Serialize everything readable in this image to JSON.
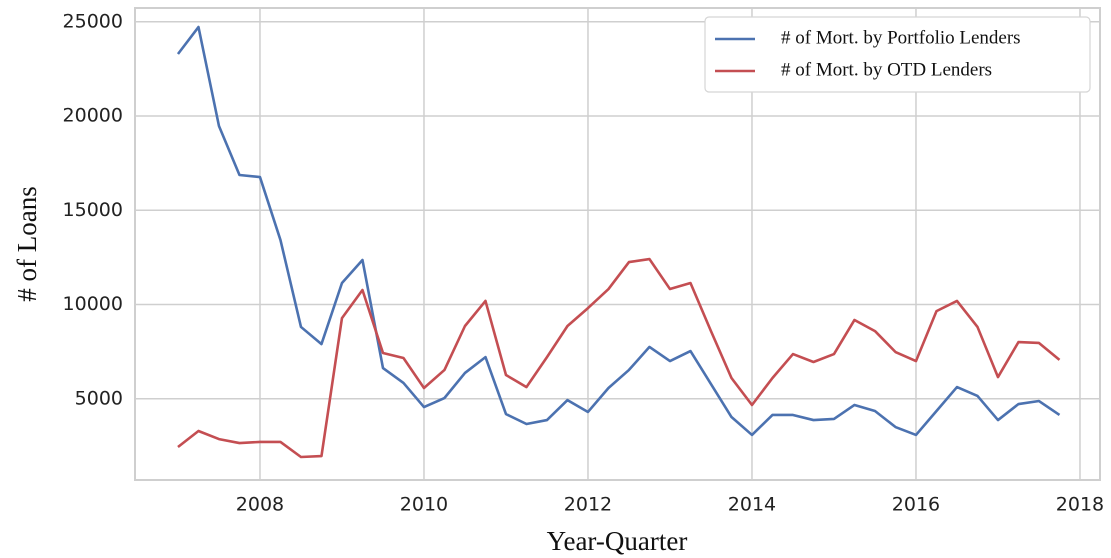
{
  "chart_data": {
    "type": "line",
    "x_label": "Year-Quarter",
    "y_label": "# of Loans",
    "x": [
      2007,
      2007.25,
      2007.5,
      2007.75,
      2008,
      2008.25,
      2008.5,
      2008.75,
      2009,
      2009.25,
      2009.5,
      2009.75,
      2010,
      2010.25,
      2010.5,
      2010.75,
      2011,
      2011.25,
      2011.5,
      2011.75,
      2012,
      2012.25,
      2012.5,
      2012.75,
      2013,
      2013.25,
      2013.5,
      2013.75,
      2014,
      2014.25,
      2014.5,
      2014.75,
      2015,
      2015.25,
      2015.5,
      2015.75,
      2016,
      2016.25,
      2016.5,
      2016.75,
      2017,
      2017.25,
      2017.5,
      2017.75
    ],
    "series": [
      {
        "name": "# of Mort. by Portfolio Lenders",
        "color": "#4c72b0",
        "values": [
          23290,
          24720,
          19470,
          16870,
          16760,
          13420,
          8810,
          7900,
          11140,
          12360,
          6630,
          5840,
          4560,
          5040,
          6370,
          7210,
          4190,
          3660,
          3870,
          4930,
          4300,
          5570,
          6530,
          7750,
          7000,
          7530,
          5780,
          4030,
          3080,
          4140,
          4140,
          3870,
          3930,
          4670,
          4350,
          3500,
          3080,
          4350,
          5620,
          5150,
          3870,
          4720,
          4880,
          4140
        ]
      },
      {
        "name": "# of Mort. by OTD Lenders",
        "color": "#c44e52",
        "values": [
          2440,
          3290,
          2860,
          2650,
          2710,
          2710,
          1910,
          1960,
          9280,
          10770,
          7430,
          7160,
          5570,
          6530,
          8860,
          10190,
          6260,
          5620,
          7210,
          8860,
          9810,
          10820,
          12250,
          12410,
          10820,
          11140,
          8590,
          6100,
          4670,
          6100,
          7370,
          6950,
          7370,
          9180,
          8590,
          7480,
          7000,
          9650,
          10190,
          8810,
          6150,
          8010,
          7960,
          7060
        ]
      }
    ],
    "xlim": [
      2006.476,
      2018.244
    ],
    "xticks": [
      2008,
      2010,
      2012,
      2014,
      2016,
      2018
    ],
    "ylim": [
      690,
      25730
    ],
    "yticks": [
      5000,
      10000,
      15000,
      20000,
      25000
    ],
    "grid": true,
    "legend": "upper-right"
  }
}
